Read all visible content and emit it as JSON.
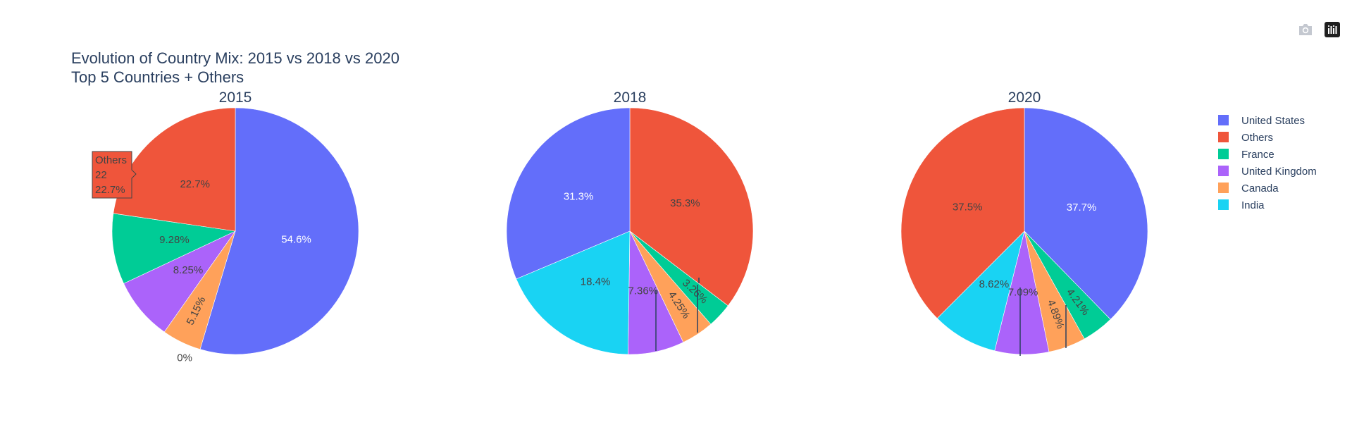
{
  "title_line1": "Evolution of Country Mix: 2015 vs 2018 vs 2020",
  "title_line2": "Top 5 Countries + Others",
  "colors": {
    "United States": "#636efa",
    "Others": "#ef553b",
    "France": "#00cc96",
    "United Kingdom": "#ab63fa",
    "Canada": "#ffa15a",
    "India": "#19d3f3"
  },
  "legend": [
    "United States",
    "Others",
    "France",
    "United Kingdom",
    "Canada",
    "India"
  ],
  "modebar": {
    "icons": [
      "camera-icon",
      "plotly-logo-icon"
    ]
  },
  "hover": {
    "label": "Others",
    "value": "22",
    "percent": "22.7%"
  },
  "chart_data": [
    {
      "type": "pie",
      "title": "2015",
      "labels": [
        "United States",
        "India",
        "Canada",
        "United Kingdom",
        "France",
        "Others"
      ],
      "percents": [
        54.6,
        0.0,
        5.15,
        8.25,
        9.28,
        22.7
      ],
      "text": [
        "54.6%",
        "0%",
        "5.15%",
        "8.25%",
        "9.28%",
        "22.7%"
      ]
    },
    {
      "type": "pie",
      "title": "2018",
      "labels": [
        "Others",
        "France",
        "Canada",
        "United Kingdom",
        "India",
        "United States"
      ],
      "percents": [
        35.3,
        3.26,
        4.25,
        7.36,
        18.4,
        31.3
      ],
      "text": [
        "35.3%",
        "3.26%",
        "4.25%",
        "7.36%",
        "18.4%",
        "31.3%"
      ]
    },
    {
      "type": "pie",
      "title": "2020",
      "labels": [
        "United States",
        "France",
        "Canada",
        "United Kingdom",
        "India",
        "Others"
      ],
      "percents": [
        37.7,
        4.21,
        4.89,
        7.09,
        8.62,
        37.5
      ],
      "text": [
        "37.7%",
        "4.21%",
        "4.89%",
        "7.09%",
        "8.62%",
        "37.5%"
      ]
    }
  ]
}
